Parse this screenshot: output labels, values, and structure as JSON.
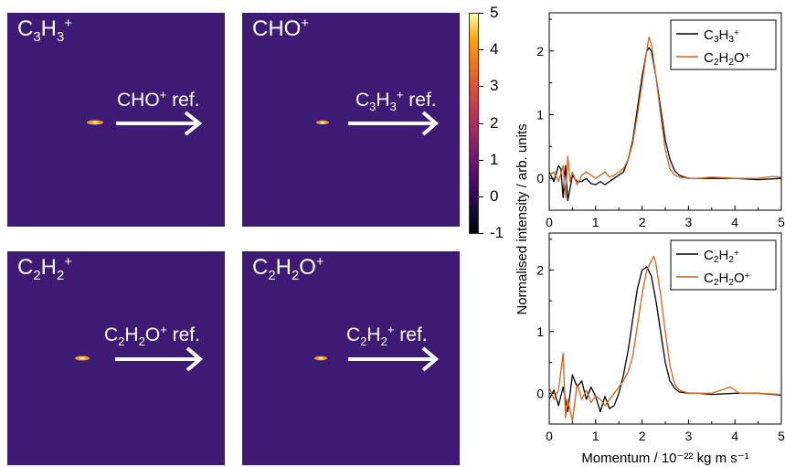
{
  "images": [
    {
      "title_parts": [
        "C",
        "3",
        "H",
        "3",
        "+"
      ],
      "ref_parts": [
        "CHO",
        "+",
        " ref."
      ]
    },
    {
      "title_parts": [
        "CHO",
        "+"
      ],
      "ref_parts": [
        "C",
        "3",
        "H",
        "3",
        "+",
        " ref."
      ]
    },
    {
      "title_parts": [
        "C",
        "2",
        "H",
        "2",
        "+"
      ],
      "ref_parts": [
        "C",
        "2",
        "H",
        "2",
        "O",
        "+",
        " ref."
      ]
    },
    {
      "title_parts": [
        "C",
        "2",
        "H",
        "2",
        "O",
        "+"
      ],
      "ref_parts": [
        "C",
        "2",
        "H",
        "2",
        "+",
        " ref."
      ]
    }
  ],
  "colorbar": {
    "ticks": [
      "5",
      "4",
      "3",
      "2",
      "1",
      "0",
      "-1"
    ],
    "range": [
      -1,
      5
    ],
    "colormap": "inferno"
  },
  "panel_color": "#3d1a74",
  "line_colors": {
    "black": "#000000",
    "orange": "#d2651f"
  },
  "chart_data": [
    {
      "type": "line",
      "xlim": [
        0,
        5
      ],
      "ylim": [
        -0.5,
        2.6
      ],
      "xticks": [
        "0",
        "1",
        "2",
        "3",
        "4",
        "5"
      ],
      "yticks": [
        "0",
        "1",
        "2"
      ],
      "ylabel": "Normalised intensity / arb. units",
      "legend_position": "top-right",
      "legend": [
        {
          "base_parts": [
            "C",
            "3",
            "H",
            "3",
            "+"
          ]
        },
        {
          "base_parts": [
            "C",
            "2",
            "H",
            "2",
            "O",
            "+"
          ]
        }
      ],
      "series": [
        {
          "color": "black",
          "x": [
            0.0,
            0.1,
            0.2,
            0.25,
            0.3,
            0.35,
            0.4,
            0.5,
            0.6,
            0.7,
            0.8,
            0.9,
            1.0,
            1.1,
            1.2,
            1.3,
            1.4,
            1.5,
            1.6,
            1.7,
            1.8,
            1.9,
            2.0,
            2.1,
            2.15,
            2.2,
            2.3,
            2.4,
            2.5,
            2.6,
            2.7,
            2.8,
            3.0,
            3.2,
            3.5,
            4.0,
            4.5,
            5.0
          ],
          "y": [
            0.1,
            -0.05,
            0.2,
            0.15,
            -0.3,
            0.2,
            -0.35,
            0.05,
            -0.05,
            -0.05,
            0.0,
            -0.08,
            -0.1,
            -0.05,
            -0.1,
            -0.05,
            0.0,
            0.05,
            0.1,
            0.3,
            0.6,
            1.1,
            1.6,
            2.0,
            2.05,
            2.0,
            1.6,
            1.1,
            0.6,
            0.3,
            0.12,
            0.05,
            0.0,
            0.0,
            0.0,
            0.0,
            -0.02,
            0.0
          ]
        },
        {
          "color": "orange",
          "x": [
            0.0,
            0.1,
            0.2,
            0.3,
            0.35,
            0.4,
            0.45,
            0.5,
            0.6,
            0.7,
            0.8,
            0.9,
            1.0,
            1.1,
            1.2,
            1.3,
            1.4,
            1.5,
            1.6,
            1.7,
            1.8,
            1.9,
            2.0,
            2.1,
            2.15,
            2.2,
            2.3,
            2.4,
            2.5,
            2.6,
            2.7,
            2.8,
            3.0,
            3.2,
            3.5,
            4.0,
            4.5,
            4.8,
            5.0
          ],
          "y": [
            0.05,
            0.1,
            -0.05,
            0.2,
            -0.3,
            0.35,
            -0.05,
            0.1,
            -0.1,
            0.05,
            0.1,
            0.05,
            0.0,
            0.05,
            0.1,
            0.02,
            0.05,
            0.1,
            0.15,
            0.3,
            0.55,
            1.0,
            1.5,
            2.0,
            2.22,
            2.1,
            1.6,
            1.0,
            0.45,
            0.15,
            0.05,
            0.02,
            0.0,
            0.0,
            0.02,
            0.0,
            0.0,
            0.03,
            0.02
          ]
        }
      ]
    },
    {
      "type": "line",
      "xlabel": "Momentum / 10⁻²² kg m s⁻¹",
      "xlim": [
        0,
        5
      ],
      "ylim": [
        -0.5,
        2.6
      ],
      "xticks": [
        "0",
        "1",
        "2",
        "3",
        "4",
        "5"
      ],
      "yticks": [
        "0",
        "1",
        "2"
      ],
      "legend_position": "top-right",
      "legend": [
        {
          "base_parts": [
            "C",
            "2",
            "H",
            "2",
            "+"
          ]
        },
        {
          "base_parts": [
            "C",
            "2",
            "H",
            "2",
            "O",
            "+"
          ]
        }
      ],
      "series": [
        {
          "color": "black",
          "x": [
            0.0,
            0.1,
            0.2,
            0.3,
            0.4,
            0.5,
            0.6,
            0.7,
            0.8,
            0.9,
            1.0,
            1.1,
            1.2,
            1.3,
            1.4,
            1.5,
            1.6,
            1.7,
            1.8,
            1.9,
            2.0,
            2.1,
            2.2,
            2.3,
            2.4,
            2.5,
            2.6,
            2.7,
            2.8,
            3.0,
            3.2,
            3.5,
            4.0,
            4.5,
            5.0
          ],
          "y": [
            -0.1,
            0.05,
            -0.2,
            0.1,
            -0.3,
            0.3,
            0.1,
            0.2,
            -0.1,
            0.1,
            -0.05,
            -0.3,
            -0.05,
            -0.25,
            -0.2,
            0.0,
            0.3,
            0.7,
            1.2,
            1.7,
            2.0,
            2.05,
            1.9,
            1.5,
            1.0,
            0.5,
            0.2,
            0.08,
            0.02,
            0.0,
            0.0,
            -0.02,
            0.0,
            0.0,
            -0.03
          ]
        },
        {
          "color": "orange",
          "x": [
            0.0,
            0.1,
            0.2,
            0.3,
            0.35,
            0.4,
            0.5,
            0.6,
            0.7,
            0.8,
            0.9,
            1.0,
            1.1,
            1.2,
            1.3,
            1.4,
            1.5,
            1.6,
            1.7,
            1.8,
            1.9,
            2.0,
            2.1,
            2.2,
            2.25,
            2.3,
            2.4,
            2.5,
            2.6,
            2.7,
            2.8,
            3.0,
            3.2,
            3.5,
            3.7,
            3.9,
            4.1,
            4.5,
            5.0
          ],
          "y": [
            0.1,
            -0.1,
            0.05,
            0.65,
            -0.4,
            -0.1,
            -0.45,
            0.15,
            -0.1,
            0.05,
            -0.15,
            -0.05,
            -0.1,
            -0.2,
            -0.1,
            0.0,
            0.1,
            0.2,
            0.35,
            0.6,
            1.1,
            1.6,
            2.0,
            2.15,
            2.22,
            2.1,
            1.6,
            1.0,
            0.45,
            0.15,
            0.05,
            0.0,
            0.0,
            0.0,
            0.05,
            0.1,
            0.0,
            0.0,
            -0.02
          ]
        }
      ]
    }
  ]
}
